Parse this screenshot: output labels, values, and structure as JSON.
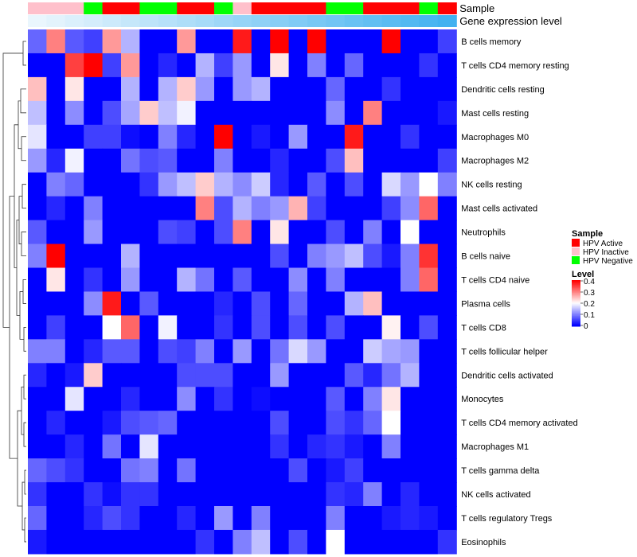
{
  "chart_data": {
    "type": "heatmap",
    "annotation_tracks": [
      {
        "name": "Sample",
        "values": [
          "HPV Inactive",
          "HPV Inactive",
          "HPV Inactive",
          "HPV Negative",
          "HPV Active",
          "HPV Active",
          "HPV Negative",
          "HPV Negative",
          "HPV Active",
          "HPV Active",
          "HPV Negative",
          "HPV Inactive",
          "HPV Active",
          "HPV Active",
          "HPV Active",
          "HPV Active",
          "HPV Negative",
          "HPV Negative",
          "HPV Active",
          "HPV Active",
          "HPV Active",
          "HPV Negative",
          "HPV Active"
        ]
      },
      {
        "name": "Gene expression level",
        "values": [
          0.0,
          0.04,
          0.09,
          0.13,
          0.18,
          0.22,
          0.27,
          0.31,
          0.36,
          0.4,
          0.45,
          0.5,
          0.54,
          0.59,
          0.63,
          0.68,
          0.72,
          0.77,
          0.81,
          0.86,
          0.9,
          0.95,
          1.0
        ]
      }
    ],
    "rows": [
      "B cells memory",
      "T cells CD4 memory resting",
      "Dendritic cells resting",
      "Mast cells resting",
      "Macrophages M0",
      "Macrophages M2",
      "NK cells resting",
      "Mast cells activated",
      "Neutrophils",
      "B cells naive",
      "T cells CD4 naive",
      "Plasma cells",
      "T cells CD8",
      "T cells follicular helper",
      "Dendritic cells activated",
      "Monocytes",
      "T cells CD4 memory activated",
      "Macrophages M1",
      "T cells gamma delta",
      "NK cells activated",
      "T cells regulatory  Tregs",
      "Eosinophils"
    ],
    "values": [
      [
        0.08,
        0.3,
        0.07,
        0.05,
        0.28,
        0.14,
        0,
        0,
        0.28,
        0,
        0,
        0.38,
        0,
        0.4,
        0,
        0.4,
        0,
        0,
        0,
        0.4,
        0,
        0,
        0.05
      ],
      [
        0,
        0,
        0.35,
        0.4,
        0.05,
        0.28,
        0,
        0.03,
        0,
        0.14,
        0.05,
        0.12,
        0,
        0.22,
        0,
        0.1,
        0,
        0.08,
        0,
        0,
        0,
        0.04,
        0
      ],
      [
        0.25,
        0,
        0.22,
        0,
        0,
        0.14,
        0,
        0.14,
        0.24,
        0.12,
        0,
        0.12,
        0.14,
        0,
        0,
        0,
        0.08,
        0,
        0,
        0.04,
        0,
        0,
        0
      ],
      [
        0.15,
        0,
        0.11,
        0,
        0.06,
        0.13,
        0.24,
        0.15,
        0.19,
        0,
        0,
        0,
        0,
        0,
        0,
        0,
        0.11,
        0,
        0.3,
        0,
        0,
        0,
        0.02
      ],
      [
        0.18,
        0,
        0,
        0.05,
        0.05,
        0.01,
        0,
        0.1,
        0.03,
        0,
        0.4,
        0,
        0.02,
        0,
        0.12,
        0,
        0,
        0.38,
        0,
        0,
        0.04,
        0,
        0
      ],
      [
        0.12,
        0.03,
        0.19,
        0,
        0,
        0.09,
        0.06,
        0.07,
        0,
        0,
        0.1,
        0,
        0,
        0.03,
        0,
        0,
        0.06,
        0.25,
        0,
        0,
        0,
        0,
        0.05
      ],
      [
        0,
        0.1,
        0.08,
        0,
        0,
        0,
        0.04,
        0.12,
        0.15,
        0.24,
        0.14,
        0.11,
        0.16,
        0.03,
        0,
        0.07,
        0,
        0.06,
        0,
        0.17,
        0.12,
        0.2,
        0.1
      ],
      [
        0,
        0.03,
        0,
        0.1,
        0,
        0,
        0,
        0,
        0,
        0.3,
        0.06,
        0.14,
        0.1,
        0.12,
        0.26,
        0.05,
        0,
        0,
        0,
        0.05,
        0.11,
        0.32,
        0
      ],
      [
        0.07,
        0,
        0,
        0.12,
        0,
        0,
        0,
        0.06,
        0.05,
        0,
        0.06,
        0.3,
        0,
        0.22,
        0,
        0,
        0.06,
        0,
        0.1,
        0,
        0.2,
        0,
        0
      ],
      [
        0.1,
        0.4,
        0,
        0,
        0,
        0.14,
        0,
        0,
        0,
        0,
        0,
        0,
        0,
        0.06,
        0,
        0.1,
        0.12,
        0.15,
        0.06,
        0.02,
        0.1,
        0.36,
        0
      ],
      [
        0,
        0.22,
        0,
        0.04,
        0,
        0.12,
        0,
        0,
        0.14,
        0.09,
        0,
        0.07,
        0,
        0,
        0.11,
        0,
        0.1,
        0,
        0,
        0,
        0.1,
        0.32,
        0
      ],
      [
        0,
        0,
        0,
        0.11,
        0.38,
        0,
        0.07,
        0,
        0,
        0,
        0.03,
        0,
        0.06,
        0,
        0.08,
        0,
        0,
        0.14,
        0.25,
        0,
        0,
        0,
        0
      ],
      [
        0,
        0.05,
        0,
        0,
        0.2,
        0.32,
        0,
        0.19,
        0,
        0,
        0.04,
        0,
        0.06,
        0,
        0.06,
        0,
        0.06,
        0,
        0,
        0.21,
        0,
        0.06,
        0
      ],
      [
        0.1,
        0.1,
        0,
        0.03,
        0.07,
        0.07,
        0,
        0.06,
        0.05,
        0.1,
        0,
        0.12,
        0,
        0.09,
        0.17,
        0.12,
        0,
        0,
        0.16,
        0.13,
        0.12,
        0,
        0
      ],
      [
        0.03,
        0,
        0.02,
        0.24,
        0,
        0,
        0,
        0,
        0.06,
        0.06,
        0.06,
        0,
        0,
        0.12,
        0,
        0,
        0,
        0.07,
        0.03,
        0.09,
        0.14,
        0,
        0
      ],
      [
        0,
        0,
        0.18,
        0,
        0,
        0.03,
        0,
        0,
        0.11,
        0,
        0.04,
        0,
        0.01,
        0,
        0,
        0,
        0.07,
        0,
        0.1,
        0.22,
        0,
        0,
        0
      ],
      [
        0,
        0.03,
        0,
        0,
        0.02,
        0.06,
        0.07,
        0.08,
        0,
        0,
        0,
        0,
        0,
        0.06,
        0,
        0,
        0.06,
        0.04,
        0.08,
        0.2,
        0,
        0,
        0
      ],
      [
        0,
        0,
        0.03,
        0,
        0.09,
        0,
        0.18,
        0,
        0,
        0,
        0,
        0,
        0,
        0.04,
        0,
        0.03,
        0.04,
        0.02,
        0,
        0.1,
        0,
        0,
        0
      ],
      [
        0.08,
        0.06,
        0.04,
        0,
        0,
        0.09,
        0.1,
        0,
        0.09,
        0,
        0,
        0,
        0,
        0,
        0.06,
        0,
        0.02,
        0.05,
        0,
        0,
        0,
        0,
        0
      ],
      [
        0.04,
        0,
        0,
        0.04,
        0.01,
        0.04,
        0.04,
        0,
        0,
        0,
        0,
        0,
        0,
        0,
        0,
        0,
        0.04,
        0.03,
        0.1,
        0,
        0.03,
        0,
        0
      ],
      [
        0.08,
        0,
        0,
        0.03,
        0.06,
        0.04,
        0,
        0,
        0.03,
        0,
        0.12,
        0,
        0.1,
        0,
        0,
        0,
        0.1,
        0,
        0,
        0.02,
        0.03,
        0.02,
        0
      ],
      [
        0.02,
        0,
        0,
        0,
        0,
        0,
        0,
        0,
        0,
        0.04,
        0,
        0.1,
        0.15,
        0,
        0.06,
        0,
        0.2,
        0,
        0,
        0,
        0,
        0,
        0.04
      ]
    ],
    "legend": {
      "sample_title": "Sample",
      "sample_items": [
        {
          "label": "HPV Active",
          "color": "#ff0000"
        },
        {
          "label": "HPV Inactive",
          "color": "#ffc0cb"
        },
        {
          "label": "HPV Negative",
          "color": "#00ff00"
        }
      ],
      "level_title": "Level",
      "level_ticks": [
        "0.4",
        "0.3",
        "0.2",
        "0.1",
        "0"
      ],
      "level_tick_values": [
        0.4,
        0.3,
        0.2,
        0.1,
        0
      ],
      "range": [
        0,
        0.4
      ]
    },
    "colors": {
      "low": "#0000ff",
      "mid": "#ffffff",
      "high": "#ff0000",
      "expr_low": "#eaf6fd",
      "expr_high": "#42b2f0"
    }
  }
}
